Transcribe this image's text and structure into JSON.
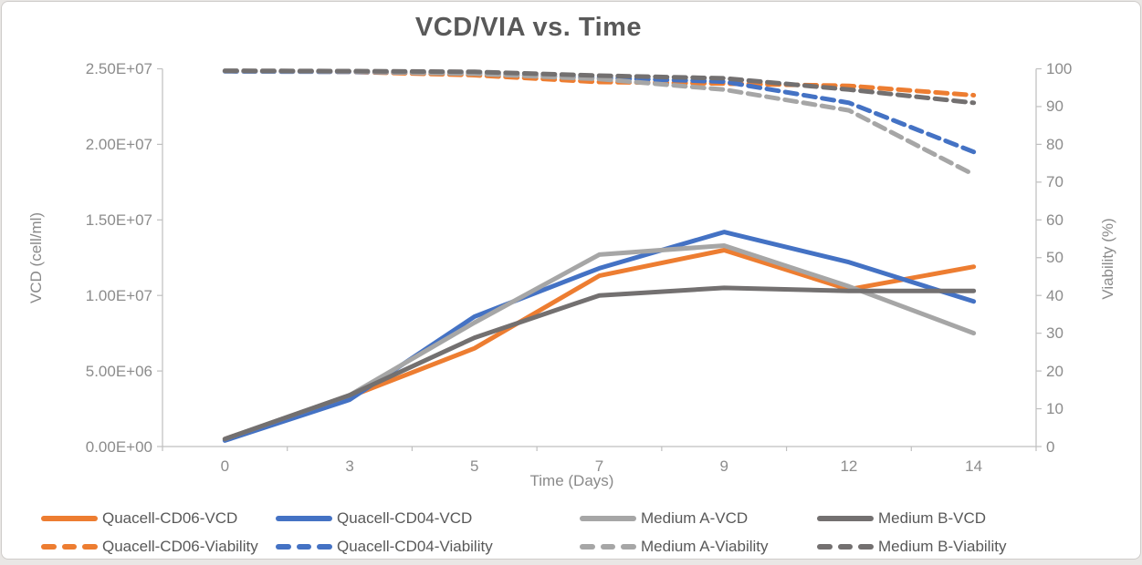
{
  "chart_data": {
    "type": "line",
    "title": "VCD/VIA vs. Time",
    "xlabel": "Time (Days)",
    "ylabel_left": "VCD (cell/ml)",
    "ylabel_right": "Viability (%)",
    "x_categories": [
      "0",
      "3",
      "5",
      "7",
      "9",
      "12",
      "14"
    ],
    "grid": false,
    "legend_position": "bottom",
    "left_axis": {
      "min": 0,
      "max": 25000000,
      "tick_values": [
        0,
        5000000,
        10000000,
        15000000,
        20000000,
        25000000
      ],
      "tick_labels": [
        "0.00E+00",
        "5.00E+06",
        "1.00E+07",
        "1.50E+07",
        "2.00E+07",
        "2.50E+07"
      ]
    },
    "right_axis": {
      "min": 0,
      "max": 100,
      "tick_values": [
        0,
        10,
        20,
        30,
        40,
        50,
        60,
        70,
        80,
        90,
        100
      ],
      "tick_labels": [
        "0",
        "10",
        "20",
        "30",
        "40",
        "50",
        "60",
        "70",
        "80",
        "90",
        "100"
      ]
    },
    "axis_line_color": "#bfbfbf",
    "series": [
      {
        "name": "Quacell-CD06-VCD",
        "axis": "left",
        "style": "solid",
        "color": "#ED7D31",
        "values": [
          500000,
          3300000,
          6500000,
          11300000,
          13000000,
          10400000,
          11900000
        ]
      },
      {
        "name": "Quacell-CD04-VCD",
        "axis": "left",
        "style": "solid",
        "color": "#4472C4",
        "values": [
          400000,
          3100000,
          8600000,
          11800000,
          14200000,
          12200000,
          9600000
        ]
      },
      {
        "name": "Medium A-VCD",
        "axis": "left",
        "style": "solid",
        "color": "#A6A6A6",
        "values": [
          500000,
          3400000,
          8200000,
          12700000,
          13300000,
          10600000,
          7500000
        ]
      },
      {
        "name": "Medium B-VCD",
        "axis": "left",
        "style": "solid",
        "color": "#737070",
        "values": [
          500000,
          3400000,
          7200000,
          10000000,
          10500000,
          10300000,
          10300000
        ]
      },
      {
        "name": "Quacell-CD06-Viability",
        "axis": "right",
        "style": "dashed",
        "color": "#ED7D31",
        "values": [
          99.4,
          99.2,
          98.3,
          96.5,
          96.1,
          95.5,
          93
        ]
      },
      {
        "name": "Quacell-CD04-Viability",
        "axis": "right",
        "style": "dashed",
        "color": "#4472C4",
        "values": [
          99.3,
          99.2,
          98.8,
          97.6,
          96.6,
          91,
          78
        ]
      },
      {
        "name": "Medium A-Viability",
        "axis": "right",
        "style": "dashed",
        "color": "#A6A6A6",
        "values": [
          99.4,
          99.3,
          98.7,
          97.3,
          94.5,
          89,
          72
        ]
      },
      {
        "name": "Medium B-Viability",
        "axis": "right",
        "style": "dashed",
        "color": "#737070",
        "values": [
          99.5,
          99.4,
          99.2,
          98.2,
          97.5,
          94.5,
          91
        ]
      }
    ]
  }
}
